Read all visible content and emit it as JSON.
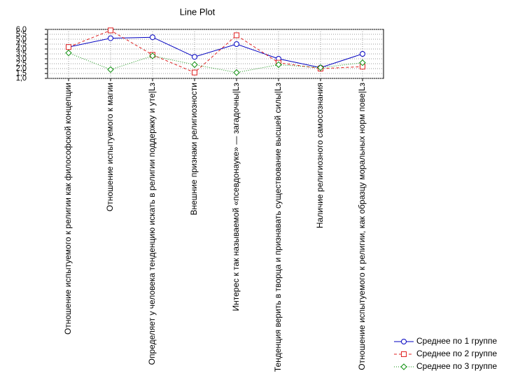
{
  "chart_data": {
    "type": "line",
    "title": "Line Plot",
    "categories": [
      "Отношение испытуемого к религии как философской концепции",
      "Отношение испытуемого к магии",
      "Определяет у человека тенденцию искать в религии поддержку и уте|Lз",
      "Внешние признаки религиозности",
      "Интерес к так называемой «псевдонауке» — загадочны|Lз",
      "Тенденция верить в творца и признавать существование высшей силы|Lз",
      "Наличие религиозного самосознания",
      "Отношение испытуемого к религии, как образцу моральных норм пове|Lз"
    ],
    "series": [
      {
        "name": "Среднее по 1 группе",
        "color": "#0000c0",
        "dash": "solid",
        "marker": "circle",
        "values": [
          4.2,
          5.1,
          5.2,
          3.2,
          4.5,
          3.0,
          2.1,
          3.5
        ]
      },
      {
        "name": "Среднее по 2 группе",
        "color": "#e02020",
        "dash": "dashed",
        "marker": "square",
        "values": [
          4.2,
          5.9,
          3.4,
          1.6,
          5.4,
          2.6,
          2.0,
          2.2
        ]
      },
      {
        "name": "Среднее по 3 группе",
        "color": "#109010",
        "dash": "dotted",
        "marker": "diamond",
        "values": [
          3.6,
          1.9,
          3.3,
          2.4,
          1.6,
          2.4,
          2.1,
          2.6
        ]
      }
    ],
    "ylim": [
      1.0,
      6.0
    ],
    "yticks": [
      {
        "value": 1.0,
        "label": "1,0"
      },
      {
        "value": 1.5,
        "label": "1,5"
      },
      {
        "value": 2.0,
        "label": "2,0"
      },
      {
        "value": 2.5,
        "label": "2,5"
      },
      {
        "value": 3.0,
        "label": "3,0"
      },
      {
        "value": 3.5,
        "label": "3,5"
      },
      {
        "value": 4.0,
        "label": "4,0"
      },
      {
        "value": 4.5,
        "label": "4,5"
      },
      {
        "value": 5.0,
        "label": "5,0"
      },
      {
        "value": 5.5,
        "label": "5,5"
      },
      {
        "value": 6.0,
        "label": "6,0"
      }
    ],
    "grid": true,
    "legend": "bottom-right"
  }
}
